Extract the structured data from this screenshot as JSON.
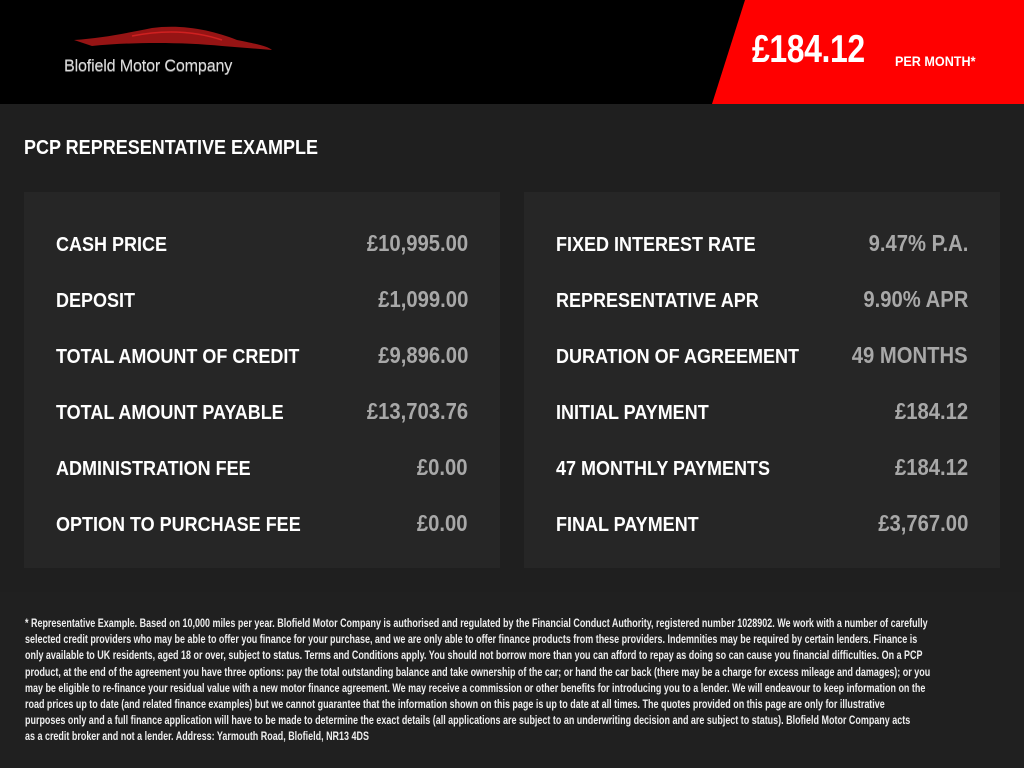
{
  "header": {
    "logo_text": "Blofield Motor Company",
    "price": "£184.12",
    "price_suffix": "PER MONTH*",
    "accent_color": "#ff0000"
  },
  "section_title": "PCP REPRESENTATIVE EXAMPLE",
  "left_panel": [
    {
      "label": "CASH PRICE",
      "value": "£10,995.00"
    },
    {
      "label": "DEPOSIT",
      "value": "£1,099.00"
    },
    {
      "label": "TOTAL AMOUNT OF CREDIT",
      "value": "£9,896.00"
    },
    {
      "label": "TOTAL AMOUNT PAYABLE",
      "value": "£13,703.76"
    },
    {
      "label": "ADMINISTRATION FEE",
      "value": "£0.00"
    },
    {
      "label": "OPTION TO PURCHASE FEE",
      "value": "£0.00"
    }
  ],
  "right_panel": [
    {
      "label": "FIXED INTEREST RATE",
      "value": "9.47% P.A."
    },
    {
      "label": "REPRESENTATIVE APR",
      "value": "9.90% APR"
    },
    {
      "label": "DURATION OF AGREEMENT",
      "value": "49 MONTHS"
    },
    {
      "label": "INITIAL PAYMENT",
      "value": "£184.12"
    },
    {
      "label": "47 MONTHLY PAYMENTS",
      "value": "£184.12"
    },
    {
      "label": "FINAL PAYMENT",
      "value": "£3,767.00"
    }
  ],
  "disclaimer_lines": [
    "* Representative Example. Based on 10,000 miles per year. Blofield Motor Company is authorised and regulated by the Financial Conduct Authority, registered number 1028902. We work with a number of carefully",
    "selected credit providers who may be able to offer you finance for your purchase, and we are only able to offer finance products from these providers. Indemnities may be required by certain lenders. Finance is",
    "only available to UK residents, aged 18 or over, subject to status. Terms and Conditions apply. You should not borrow more than you can afford to repay as doing so can cause you financial difficulties. On a PCP",
    "product, at the end of the agreement you have three options: pay the total outstanding balance and take ownership of the car; or hand the car back (there may be a charge for excess mileage and damages); or you",
    "may be eligible to re-finance your residual value with a new motor finance agreement. We may receive a commission or other benefits for introducing you to a lender. We will endeavour to keep information on the",
    "road prices up to date (and related finance examples) but we cannot guarantee that the information shown on this page is up to date at all times. The quotes provided on this page are only for illustrative",
    "purposes only and a full finance application will have to be made to determine the exact details (all applications are subject to an underwriting decision and are subject to status). Blofield Motor Company acts",
    "as a credit broker and not a lender. Address: Yarmouth Road, Blofield, NR13 4DS"
  ]
}
